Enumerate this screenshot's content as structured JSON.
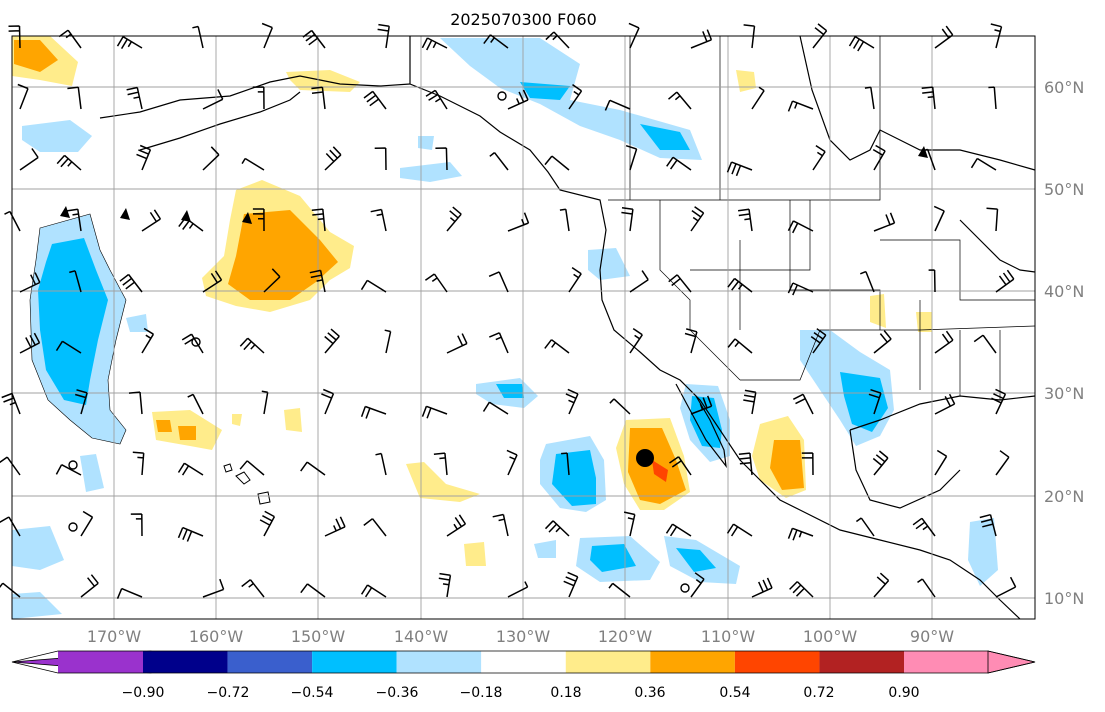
{
  "title": "2025070300 F060",
  "axes": {
    "lat_labels": [
      "60°N",
      "50°N",
      "40°N",
      "30°N",
      "20°N",
      "10°N"
    ],
    "lon_labels": [
      "170°W",
      "160°W",
      "150°W",
      "140°W",
      "130°W",
      "120°W",
      "110°W",
      "100°W",
      "90°W"
    ]
  },
  "colorbar": {
    "tick_labels": [
      "−0.90",
      "−0.72",
      "−0.54",
      "−0.36",
      "−0.18",
      "0.18",
      "0.36",
      "0.54",
      "0.72",
      "0.90"
    ],
    "colors": [
      "#9a32cd",
      "#00008b",
      "#3a5fcd",
      "#00bfff",
      "#b0e2ff",
      "#ffffff",
      "#ffec8b",
      "#ffa500",
      "#ff4500",
      "#b22222",
      "#ff8cb4"
    ]
  },
  "colors": {
    "land_outline": "#000000",
    "grid": "#a0a0a0",
    "storm_marker": "#000000"
  }
}
